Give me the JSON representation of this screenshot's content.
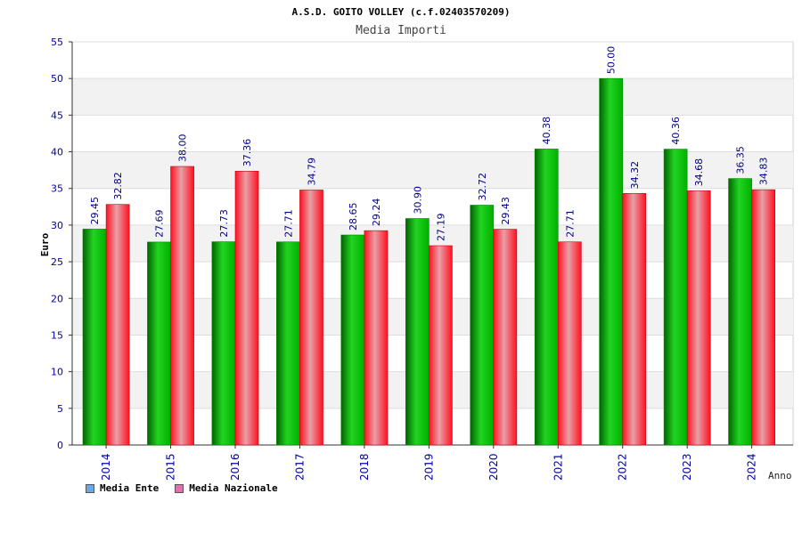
{
  "chart_data": {
    "type": "bar",
    "title": "A.S.D. GOITO VOLLEY (c.f.02403570209)",
    "subtitle": "Media Importi",
    "xlabel": "Anno",
    "ylabel": "Euro",
    "ylim": [
      0,
      55
    ],
    "yticks": [
      0,
      5,
      10,
      15,
      20,
      25,
      30,
      35,
      40,
      45,
      50,
      55
    ],
    "categories": [
      "2014",
      "2015",
      "2016",
      "2017",
      "2018",
      "2019",
      "2020",
      "2021",
      "2022",
      "2023",
      "2024"
    ],
    "series": [
      {
        "name": "Media Ente",
        "values": [
          29.45,
          27.69,
          27.73,
          27.71,
          28.65,
          30.9,
          32.72,
          40.38,
          50.0,
          40.36,
          36.35
        ],
        "labels": [
          "29.45",
          "27.69",
          "27.73",
          "27.71",
          "28.65",
          "30.90",
          "32.72",
          "40.38",
          "50.00",
          "40.36",
          "36.35"
        ],
        "color": "#1ec41e",
        "legend_color": "#6aa8ea"
      },
      {
        "name": "Media Nazionale",
        "values": [
          32.82,
          38.0,
          37.36,
          34.79,
          29.24,
          27.19,
          29.43,
          27.71,
          34.32,
          34.68,
          34.83
        ],
        "labels": [
          "32.82",
          "38.00",
          "37.36",
          "34.79",
          "29.24",
          "27.19",
          "29.43",
          "27.71",
          "34.32",
          "34.68",
          "34.83"
        ],
        "color": "#e8142a",
        "legend_color": "#e070b0"
      }
    ],
    "grid": true,
    "legend_position": "bottom-left"
  }
}
